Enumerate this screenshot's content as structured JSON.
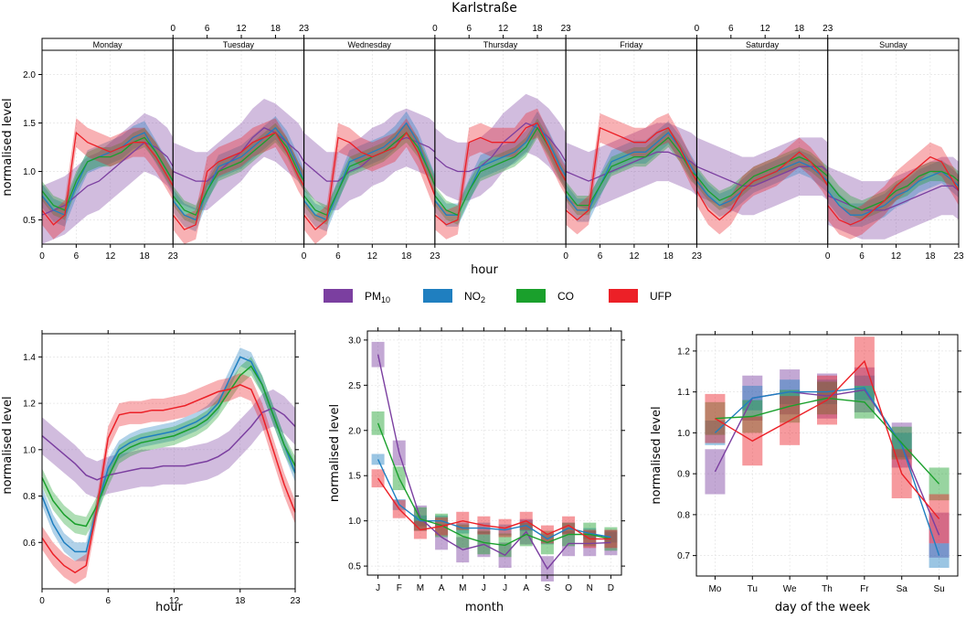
{
  "title": "Karlstraße",
  "pollutants": [
    {
      "key": "pm10",
      "base": "PM",
      "sub": "10",
      "color": "#7b3fa0"
    },
    {
      "key": "no2",
      "base": "NO",
      "sub": "2",
      "color": "#1f7fc0"
    },
    {
      "key": "co",
      "base": "CO",
      "sub": "",
      "color": "#1aa02c"
    },
    {
      "key": "ufp",
      "base": "UFP",
      "sub": "",
      "color": "#ec2027"
    }
  ],
  "chart_data": [
    {
      "id": "weekly",
      "type": "line",
      "title": "Karlstraße",
      "xlabel": "hour",
      "ylabel": "normalised level",
      "ylim": [
        0.25,
        2.25
      ],
      "yticks": [
        0.5,
        1.0,
        1.5,
        2.0
      ],
      "ytick_labels": [
        "0.5",
        "1.0",
        "1.5",
        "2.0"
      ],
      "hour_ticks": [
        0,
        6,
        12,
        18,
        23
      ],
      "hour_tick_labels": [
        "0",
        "6",
        "12",
        "18",
        "23"
      ],
      "panels": [
        "Monday",
        "Tuesday",
        "Wednesday",
        "Thursday",
        "Friday",
        "Saturday",
        "Sunday"
      ],
      "hours": [
        0,
        2,
        4,
        6,
        8,
        10,
        12,
        14,
        16,
        18,
        20,
        22,
        23
      ],
      "band_halfwidth": {
        "pm10": 0.3,
        "no2": 0.12,
        "co": 0.1,
        "ufp": 0.15
      },
      "series": [
        {
          "name": "pm10",
          "values": [
            [
              0.55,
              0.6,
              0.65,
              0.75,
              0.85,
              0.9,
              1.0,
              1.1,
              1.2,
              1.3,
              1.25,
              1.15,
              1.05
            ],
            [
              1.0,
              0.95,
              0.9,
              0.9,
              1.0,
              1.1,
              1.2,
              1.35,
              1.45,
              1.4,
              1.3,
              1.2,
              1.1
            ],
            [
              1.1,
              1.0,
              0.9,
              0.9,
              1.0,
              1.05,
              1.15,
              1.2,
              1.3,
              1.35,
              1.3,
              1.25,
              1.2
            ],
            [
              1.15,
              1.05,
              1.0,
              1.0,
              1.05,
              1.15,
              1.3,
              1.4,
              1.5,
              1.45,
              1.35,
              1.2,
              1.1
            ],
            [
              1.0,
              0.95,
              0.9,
              0.95,
              1.0,
              1.05,
              1.1,
              1.15,
              1.2,
              1.2,
              1.15,
              1.1,
              1.05
            ],
            [
              1.05,
              1.0,
              0.95,
              0.9,
              0.85,
              0.85,
              0.9,
              0.95,
              1.0,
              1.05,
              1.05,
              1.05,
              1.0
            ],
            [
              0.75,
              0.7,
              0.65,
              0.6,
              0.6,
              0.6,
              0.65,
              0.7,
              0.75,
              0.8,
              0.85,
              0.85,
              0.8
            ]
          ]
        },
        {
          "name": "no2",
          "values": [
            [
              0.75,
              0.6,
              0.55,
              0.85,
              1.1,
              1.15,
              1.2,
              1.25,
              1.35,
              1.4,
              1.2,
              1.0,
              0.9
            ],
            [
              0.7,
              0.55,
              0.5,
              0.8,
              1.05,
              1.1,
              1.15,
              1.25,
              1.35,
              1.45,
              1.3,
              1.05,
              0.9
            ],
            [
              0.7,
              0.55,
              0.5,
              0.8,
              1.1,
              1.15,
              1.2,
              1.25,
              1.35,
              1.5,
              1.3,
              1.0,
              0.85
            ],
            [
              0.7,
              0.55,
              0.55,
              0.8,
              1.05,
              1.1,
              1.15,
              1.2,
              1.3,
              1.5,
              1.3,
              1.05,
              0.95
            ],
            [
              0.75,
              0.6,
              0.6,
              0.85,
              1.1,
              1.15,
              1.2,
              1.2,
              1.3,
              1.4,
              1.25,
              1.05,
              0.95
            ],
            [
              0.9,
              0.75,
              0.65,
              0.7,
              0.8,
              0.9,
              0.95,
              1.0,
              1.05,
              1.1,
              1.05,
              0.95,
              0.9
            ],
            [
              0.8,
              0.65,
              0.55,
              0.55,
              0.6,
              0.65,
              0.75,
              0.8,
              0.9,
              0.95,
              1.0,
              0.9,
              0.85
            ]
          ]
        },
        {
          "name": "co",
          "values": [
            [
              0.8,
              0.65,
              0.6,
              0.9,
              1.1,
              1.15,
              1.15,
              1.2,
              1.3,
              1.35,
              1.2,
              1.0,
              0.9
            ],
            [
              0.75,
              0.6,
              0.55,
              0.8,
              1.0,
              1.05,
              1.1,
              1.2,
              1.3,
              1.4,
              1.25,
              1.0,
              0.9
            ],
            [
              0.75,
              0.6,
              0.55,
              0.8,
              1.05,
              1.1,
              1.15,
              1.2,
              1.3,
              1.4,
              1.25,
              1.0,
              0.85
            ],
            [
              0.75,
              0.6,
              0.55,
              0.8,
              1.0,
              1.05,
              1.1,
              1.15,
              1.25,
              1.45,
              1.25,
              1.0,
              0.9
            ],
            [
              0.8,
              0.65,
              0.65,
              0.85,
              1.05,
              1.1,
              1.15,
              1.15,
              1.25,
              1.35,
              1.2,
              1.0,
              0.95
            ],
            [
              0.95,
              0.8,
              0.7,
              0.75,
              0.85,
              0.95,
              1.0,
              1.05,
              1.1,
              1.15,
              1.1,
              1.0,
              0.95
            ],
            [
              0.9,
              0.75,
              0.65,
              0.6,
              0.65,
              0.7,
              0.8,
              0.85,
              0.95,
              1.0,
              1.0,
              0.95,
              0.9
            ]
          ]
        },
        {
          "name": "ufp",
          "values": [
            [
              0.6,
              0.45,
              0.55,
              1.4,
              1.3,
              1.25,
              1.2,
              1.25,
              1.3,
              1.3,
              1.15,
              0.95,
              0.85
            ],
            [
              0.55,
              0.4,
              0.45,
              1.0,
              1.1,
              1.15,
              1.2,
              1.3,
              1.35,
              1.4,
              1.2,
              0.95,
              0.85
            ],
            [
              0.55,
              0.4,
              0.5,
              1.35,
              1.3,
              1.2,
              1.15,
              1.2,
              1.25,
              1.4,
              1.2,
              0.9,
              0.75
            ],
            [
              0.55,
              0.45,
              0.5,
              1.3,
              1.35,
              1.3,
              1.3,
              1.3,
              1.45,
              1.5,
              1.25,
              1.0,
              0.9
            ],
            [
              0.6,
              0.5,
              0.6,
              1.45,
              1.4,
              1.35,
              1.3,
              1.3,
              1.4,
              1.45,
              1.25,
              1.0,
              0.9
            ],
            [
              0.8,
              0.6,
              0.5,
              0.6,
              0.8,
              0.9,
              0.95,
              1.0,
              1.1,
              1.2,
              1.1,
              0.95,
              0.85
            ],
            [
              0.65,
              0.5,
              0.45,
              0.5,
              0.6,
              0.7,
              0.85,
              0.95,
              1.05,
              1.15,
              1.1,
              0.9,
              0.8
            ]
          ]
        }
      ]
    },
    {
      "id": "hour",
      "type": "line",
      "xlabel": "hour",
      "ylabel": "normalised level",
      "xlim": [
        0,
        23
      ],
      "ylim": [
        0.4,
        1.5
      ],
      "xticks": [
        0,
        6,
        12,
        18,
        23
      ],
      "xtick_labels": [
        "0",
        "6",
        "12",
        "18",
        "23"
      ],
      "yticks": [
        0.6,
        0.8,
        1.0,
        1.2,
        1.4
      ],
      "ytick_labels": [
        "0.6",
        "0.8",
        "1.0",
        "1.2",
        "1.4"
      ],
      "x": [
        0,
        1,
        2,
        3,
        4,
        5,
        6,
        7,
        8,
        9,
        10,
        11,
        12,
        13,
        14,
        15,
        16,
        17,
        18,
        19,
        20,
        21,
        22,
        23
      ],
      "band_halfwidth": {
        "pm10": 0.08,
        "no2": 0.04,
        "co": 0.04,
        "ufp": 0.05
      },
      "series": [
        {
          "name": "pm10",
          "values": [
            1.06,
            1.02,
            0.98,
            0.94,
            0.89,
            0.87,
            0.89,
            0.9,
            0.91,
            0.92,
            0.92,
            0.93,
            0.93,
            0.93,
            0.94,
            0.95,
            0.97,
            1.0,
            1.05,
            1.1,
            1.16,
            1.18,
            1.15,
            1.1
          ]
        },
        {
          "name": "no2",
          "values": [
            0.8,
            0.68,
            0.6,
            0.56,
            0.56,
            0.75,
            0.92,
            1.0,
            1.03,
            1.05,
            1.06,
            1.07,
            1.08,
            1.1,
            1.12,
            1.15,
            1.2,
            1.3,
            1.4,
            1.38,
            1.28,
            1.15,
            1.02,
            0.9
          ]
        },
        {
          "name": "co",
          "values": [
            0.88,
            0.78,
            0.72,
            0.68,
            0.67,
            0.76,
            0.88,
            0.98,
            1.01,
            1.03,
            1.04,
            1.05,
            1.06,
            1.08,
            1.1,
            1.13,
            1.18,
            1.25,
            1.32,
            1.36,
            1.28,
            1.15,
            1.02,
            0.93
          ]
        },
        {
          "name": "ufp",
          "values": [
            0.62,
            0.55,
            0.5,
            0.47,
            0.5,
            0.75,
            1.05,
            1.15,
            1.16,
            1.16,
            1.17,
            1.17,
            1.18,
            1.19,
            1.21,
            1.23,
            1.25,
            1.26,
            1.28,
            1.26,
            1.15,
            1.0,
            0.85,
            0.73
          ]
        }
      ]
    },
    {
      "id": "month",
      "type": "line",
      "xlabel": "month",
      "ylabel": "normalised level",
      "categories": [
        "J",
        "F",
        "M",
        "A",
        "M",
        "J",
        "J",
        "A",
        "S",
        "O",
        "N",
        "D"
      ],
      "ylim": [
        0.4,
        3.1
      ],
      "yticks": [
        0.5,
        1.0,
        1.5,
        2.0,
        2.5,
        3.0
      ],
      "ytick_labels": [
        "0.5",
        "1.0",
        "1.5",
        "2.0",
        "2.5",
        "3.0"
      ],
      "box_halfheight": {
        "pm10": 0.14,
        "no2": 0.06,
        "co": 0.13,
        "ufp": 0.1
      },
      "series": [
        {
          "name": "pm10",
          "values": [
            2.84,
            1.75,
            1.03,
            0.82,
            0.68,
            0.74,
            0.62,
            0.88,
            0.47,
            0.75,
            0.75,
            0.76
          ]
        },
        {
          "name": "no2",
          "values": [
            1.68,
            1.18,
            1.0,
            1.0,
            0.92,
            0.92,
            0.9,
            0.95,
            0.8,
            0.92,
            0.86,
            0.82
          ]
        },
        {
          "name": "co",
          "values": [
            2.08,
            1.47,
            1.02,
            0.95,
            0.83,
            0.76,
            0.73,
            0.85,
            0.76,
            0.85,
            0.85,
            0.8
          ]
        },
        {
          "name": "ufp",
          "values": [
            1.47,
            1.13,
            0.9,
            0.94,
            1.0,
            0.95,
            0.92,
            1.0,
            0.85,
            0.95,
            0.8,
            0.8
          ]
        }
      ]
    },
    {
      "id": "weekday",
      "type": "line",
      "xlabel": "day of the week",
      "ylabel": "normalised level",
      "categories": [
        "Mo",
        "Tu",
        "We",
        "Th",
        "Fr",
        "Sa",
        "Su"
      ],
      "ylim": [
        0.65,
        1.24
      ],
      "yticks": [
        0.7,
        0.8,
        0.9,
        1.0,
        1.1,
        1.2
      ],
      "ytick_labels": [
        "0.7",
        "0.8",
        "0.9",
        "1.0",
        "1.1",
        "1.2"
      ],
      "box_halfheight": {
        "pm10": 0.055,
        "no2": 0.03,
        "co": 0.04,
        "ufp": 0.06
      },
      "series": [
        {
          "name": "pm10",
          "values": [
            0.905,
            1.085,
            1.1,
            1.09,
            1.105,
            0.97,
            0.75
          ]
        },
        {
          "name": "no2",
          "values": [
            1.0,
            1.085,
            1.1,
            1.1,
            1.11,
            0.97,
            0.7
          ]
        },
        {
          "name": "co",
          "values": [
            1.035,
            1.04,
            1.065,
            1.085,
            1.075,
            0.975,
            0.875
          ]
        },
        {
          "name": "ufp",
          "values": [
            1.035,
            0.98,
            1.03,
            1.08,
            1.175,
            0.9,
            0.79
          ]
        }
      ]
    }
  ]
}
